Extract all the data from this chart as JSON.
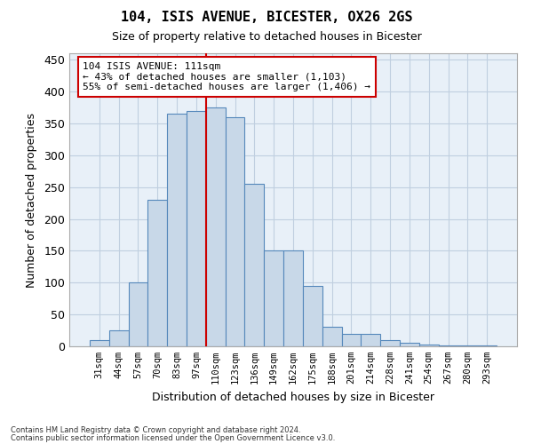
{
  "title": "104, ISIS AVENUE, BICESTER, OX26 2GS",
  "subtitle": "Size of property relative to detached houses in Bicester",
  "xlabel": "Distribution of detached houses by size in Bicester",
  "ylabel": "Number of detached properties",
  "footnote1": "Contains HM Land Registry data © Crown copyright and database right 2024.",
  "footnote2": "Contains public sector information licensed under the Open Government Licence v3.0.",
  "categories": [
    "31sqm",
    "44sqm",
    "57sqm",
    "70sqm",
    "83sqm",
    "97sqm",
    "110sqm",
    "123sqm",
    "136sqm",
    "149sqm",
    "162sqm",
    "175sqm",
    "188sqm",
    "201sqm",
    "214sqm",
    "228sqm",
    "241sqm",
    "254sqm",
    "267sqm",
    "280sqm",
    "293sqm"
  ],
  "values": [
    10,
    25,
    100,
    230,
    365,
    370,
    375,
    360,
    255,
    150,
    150,
    95,
    30,
    20,
    20,
    10,
    5,
    3,
    2,
    1,
    1
  ],
  "bar_color": "#c8d8e8",
  "bar_edge_color": "#5588bb",
  "grid_color": "#c0cfe0",
  "bg_color": "#e8f0f8",
  "vline_color": "#cc0000",
  "vline_idx": 6,
  "annotation_text": "104 ISIS AVENUE: 111sqm\n← 43% of detached houses are smaller (1,103)\n55% of semi-detached houses are larger (1,406) →",
  "annotation_box_color": "#cc0000",
  "ylim": [
    0,
    460
  ],
  "yticks": [
    0,
    50,
    100,
    150,
    200,
    250,
    300,
    350,
    400,
    450
  ]
}
